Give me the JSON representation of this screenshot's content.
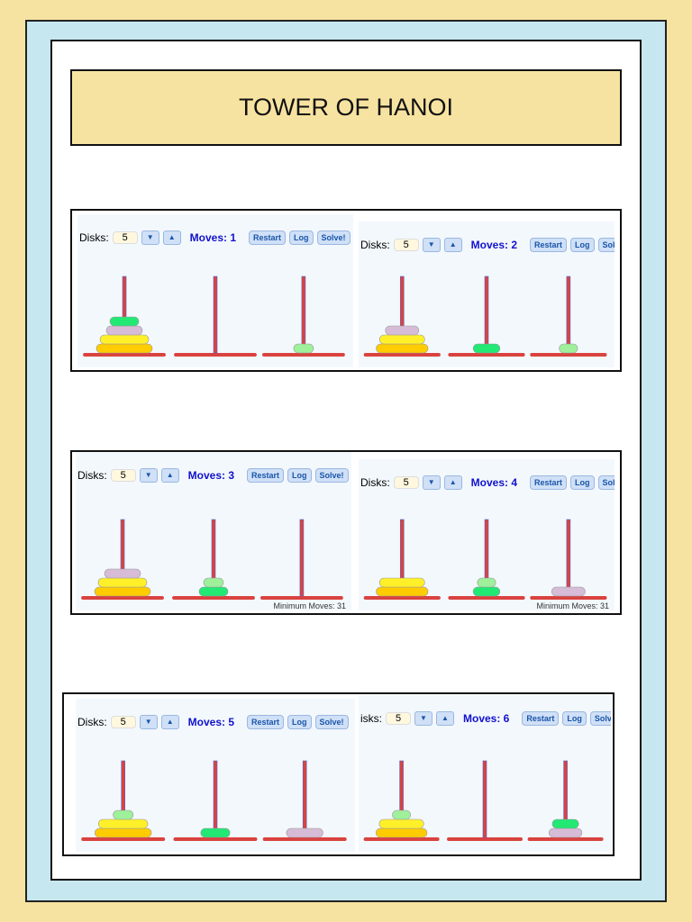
{
  "header": {
    "title": "TOWER OF HANOI"
  },
  "panels": [
    {
      "disks_label": "Disks:",
      "disks": "5",
      "moves": "Moves: 1",
      "buttons": [
        "Restart",
        "Log",
        "Solve!"
      ]
    },
    {
      "disks_label": "Disks:",
      "disks": "5",
      "moves": "Moves: 2",
      "buttons": [
        "Restart",
        "Log",
        "Solve!"
      ]
    },
    {
      "disks_label": "Disks:",
      "disks": "5",
      "moves": "Moves: 3",
      "buttons": [
        "Restart",
        "Log",
        "Solve!"
      ],
      "minimum": "Minimum Moves: 31"
    },
    {
      "disks_label": "Disks:",
      "disks": "5",
      "moves": "Moves: 4",
      "buttons": [
        "Restart",
        "Log",
        "Solve!"
      ],
      "minimum": "Minimum Moves: 31"
    },
    {
      "disks_label": "Disks:",
      "disks": "5",
      "moves": "Moves: 5",
      "buttons": [
        "Restart",
        "Log",
        "Solve!"
      ]
    },
    {
      "disks_label": "isks:",
      "disks": "5",
      "moves": "Moves: 6",
      "buttons": [
        "Restart",
        "Log",
        "Solve!"
      ]
    }
  ]
}
